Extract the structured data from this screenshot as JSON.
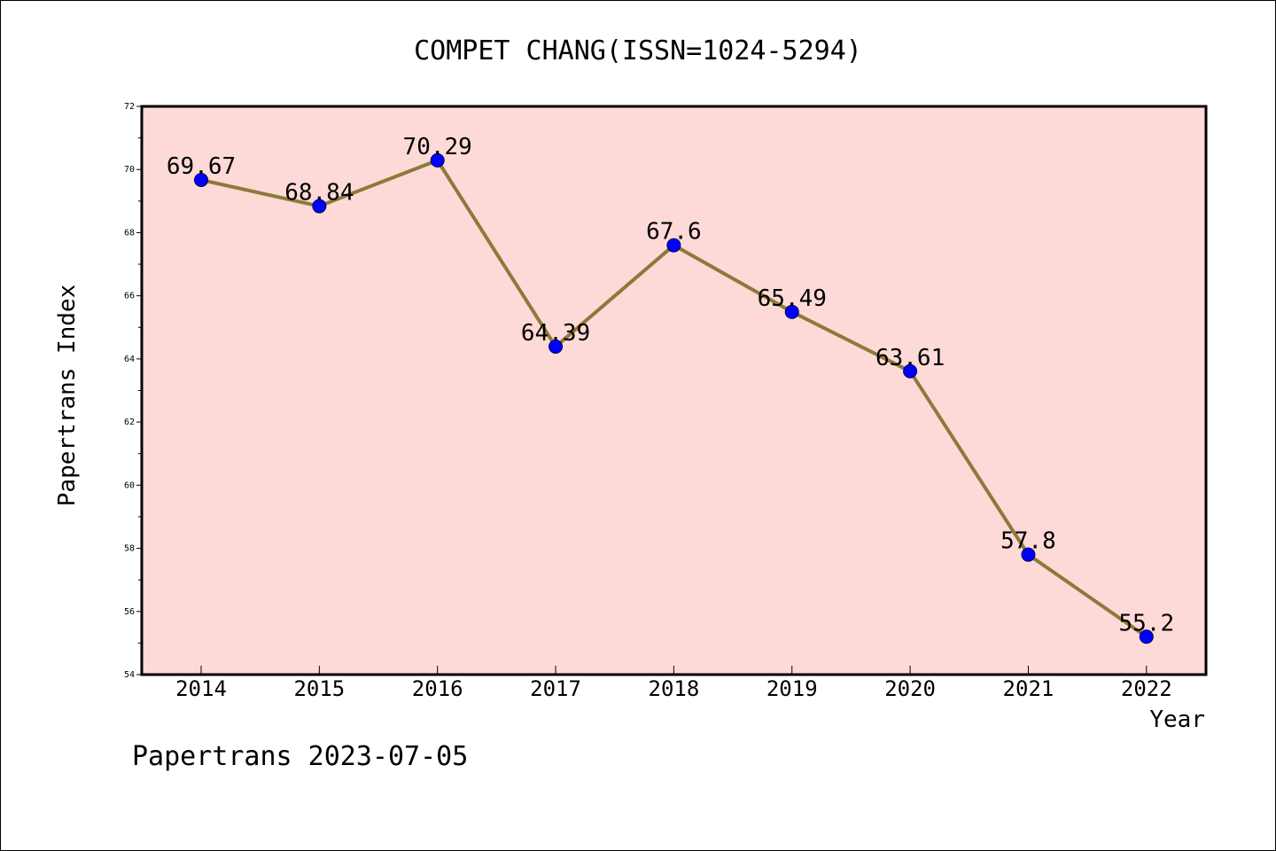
{
  "chart_data": {
    "type": "line",
    "title": "COMPET CHANG(ISSN=1024-5294)",
    "xlabel": "Year",
    "ylabel": "Papertrans Index",
    "footer": "Papertrans 2023-07-05",
    "categories": [
      "2014",
      "2015",
      "2016",
      "2017",
      "2018",
      "2019",
      "2020",
      "2021",
      "2022"
    ],
    "series": [
      {
        "values": [
          69.67,
          68.84,
          70.29,
          64.39,
          67.6,
          65.49,
          63.61,
          57.8,
          55.2
        ],
        "point_labels": [
          "69.67",
          "68.84",
          "70.29",
          "64.39",
          "67.6",
          "65.49",
          "63.61",
          "57.8",
          "55.2"
        ]
      }
    ],
    "ylim": [
      54,
      72
    ],
    "yticks": [
      54,
      56,
      58,
      60,
      62,
      64,
      66,
      68,
      70,
      72
    ],
    "ytick_labels": [
      "54",
      "56",
      "58",
      "60",
      "62",
      "64",
      "66",
      "68",
      "70",
      "72"
    ],
    "grid": false,
    "colors": {
      "plot_background": "#fddad7",
      "line": "#8c7a3a",
      "marker": "#0000ff",
      "axes": "#000000"
    }
  }
}
